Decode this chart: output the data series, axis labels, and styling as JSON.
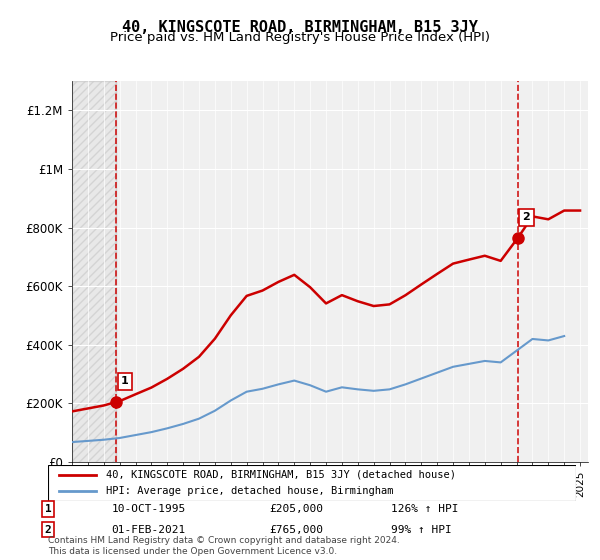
{
  "title": "40, KINGSCOTE ROAD, BIRMINGHAM, B15 3JY",
  "subtitle": "Price paid vs. HM Land Registry's House Price Index (HPI)",
  "xlabel": "",
  "ylabel": "",
  "ylim": [
    0,
    1300000
  ],
  "yticks": [
    0,
    200000,
    400000,
    600000,
    800000,
    1000000,
    1200000
  ],
  "ytick_labels": [
    "£0",
    "£200K",
    "£400K",
    "£600K",
    "£800K",
    "£1M",
    "£1.2M"
  ],
  "background_color": "#ffffff",
  "plot_bg_color": "#f0f0f0",
  "hatch_color": "#d0d0d0",
  "grid_color": "#ffffff",
  "title_fontsize": 11,
  "subtitle_fontsize": 9.5,
  "line1_color": "#cc0000",
  "line2_color": "#6699cc",
  "point1_x": 1995.79,
  "point1_y": 205000,
  "point1_label": "1",
  "point2_x": 2021.08,
  "point2_y": 765000,
  "point2_label": "2",
  "dashed_line1_x": 1995.79,
  "dashed_line2_x": 2021.08,
  "legend_line1": "40, KINGSCOTE ROAD, BIRMINGHAM, B15 3JY (detached house)",
  "legend_line2": "HPI: Average price, detached house, Birmingham",
  "annotation1_date": "10-OCT-1995",
  "annotation1_price": "£205,000",
  "annotation1_hpi": "126% ↑ HPI",
  "annotation2_date": "01-FEB-2021",
  "annotation2_price": "£765,000",
  "annotation2_hpi": "99% ↑ HPI",
  "footer": "Contains HM Land Registry data © Crown copyright and database right 2024.\nThis data is licensed under the Open Government Licence v3.0.",
  "xmin": 1993,
  "xmax": 2025.5,
  "hpi_scale_factor": 0.46
}
